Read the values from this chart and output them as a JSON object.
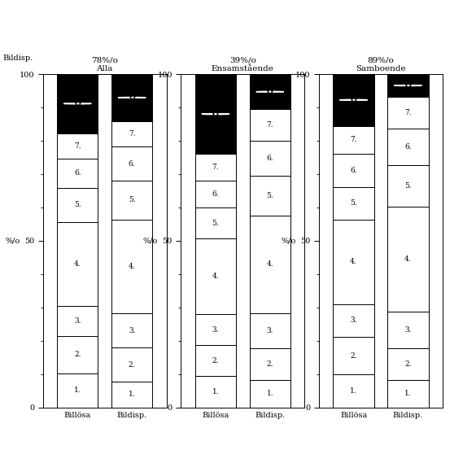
{
  "groups": [
    {
      "name": "Alla",
      "pct": "78%/o",
      "billosa": {
        "black": 14,
        "segs": [
          8,
          9,
          7,
          20,
          8,
          7,
          6
        ]
      },
      "bildisp": {
        "black": 11,
        "segs": [
          6,
          8,
          8,
          22,
          9,
          8,
          6
        ]
      }
    },
    {
      "name": "Ensamstående",
      "pct": "39%/o",
      "billosa": {
        "black": 18,
        "segs": [
          7,
          7,
          7,
          17,
          7,
          6,
          6
        ]
      },
      "bildisp": {
        "black": 9,
        "segs": [
          7,
          8,
          9,
          25,
          10,
          9,
          8
        ]
      }
    },
    {
      "name": "Samboende",
      "pct": "89%/o",
      "billosa": {
        "black": 11,
        "segs": [
          7,
          8,
          7,
          18,
          7,
          7,
          6
        ]
      },
      "bildisp": {
        "black": 5,
        "segs": [
          6,
          7,
          8,
          23,
          9,
          8,
          7
        ]
      }
    }
  ],
  "fig_width": 5.85,
  "fig_height": 5.69,
  "dpi": 100
}
